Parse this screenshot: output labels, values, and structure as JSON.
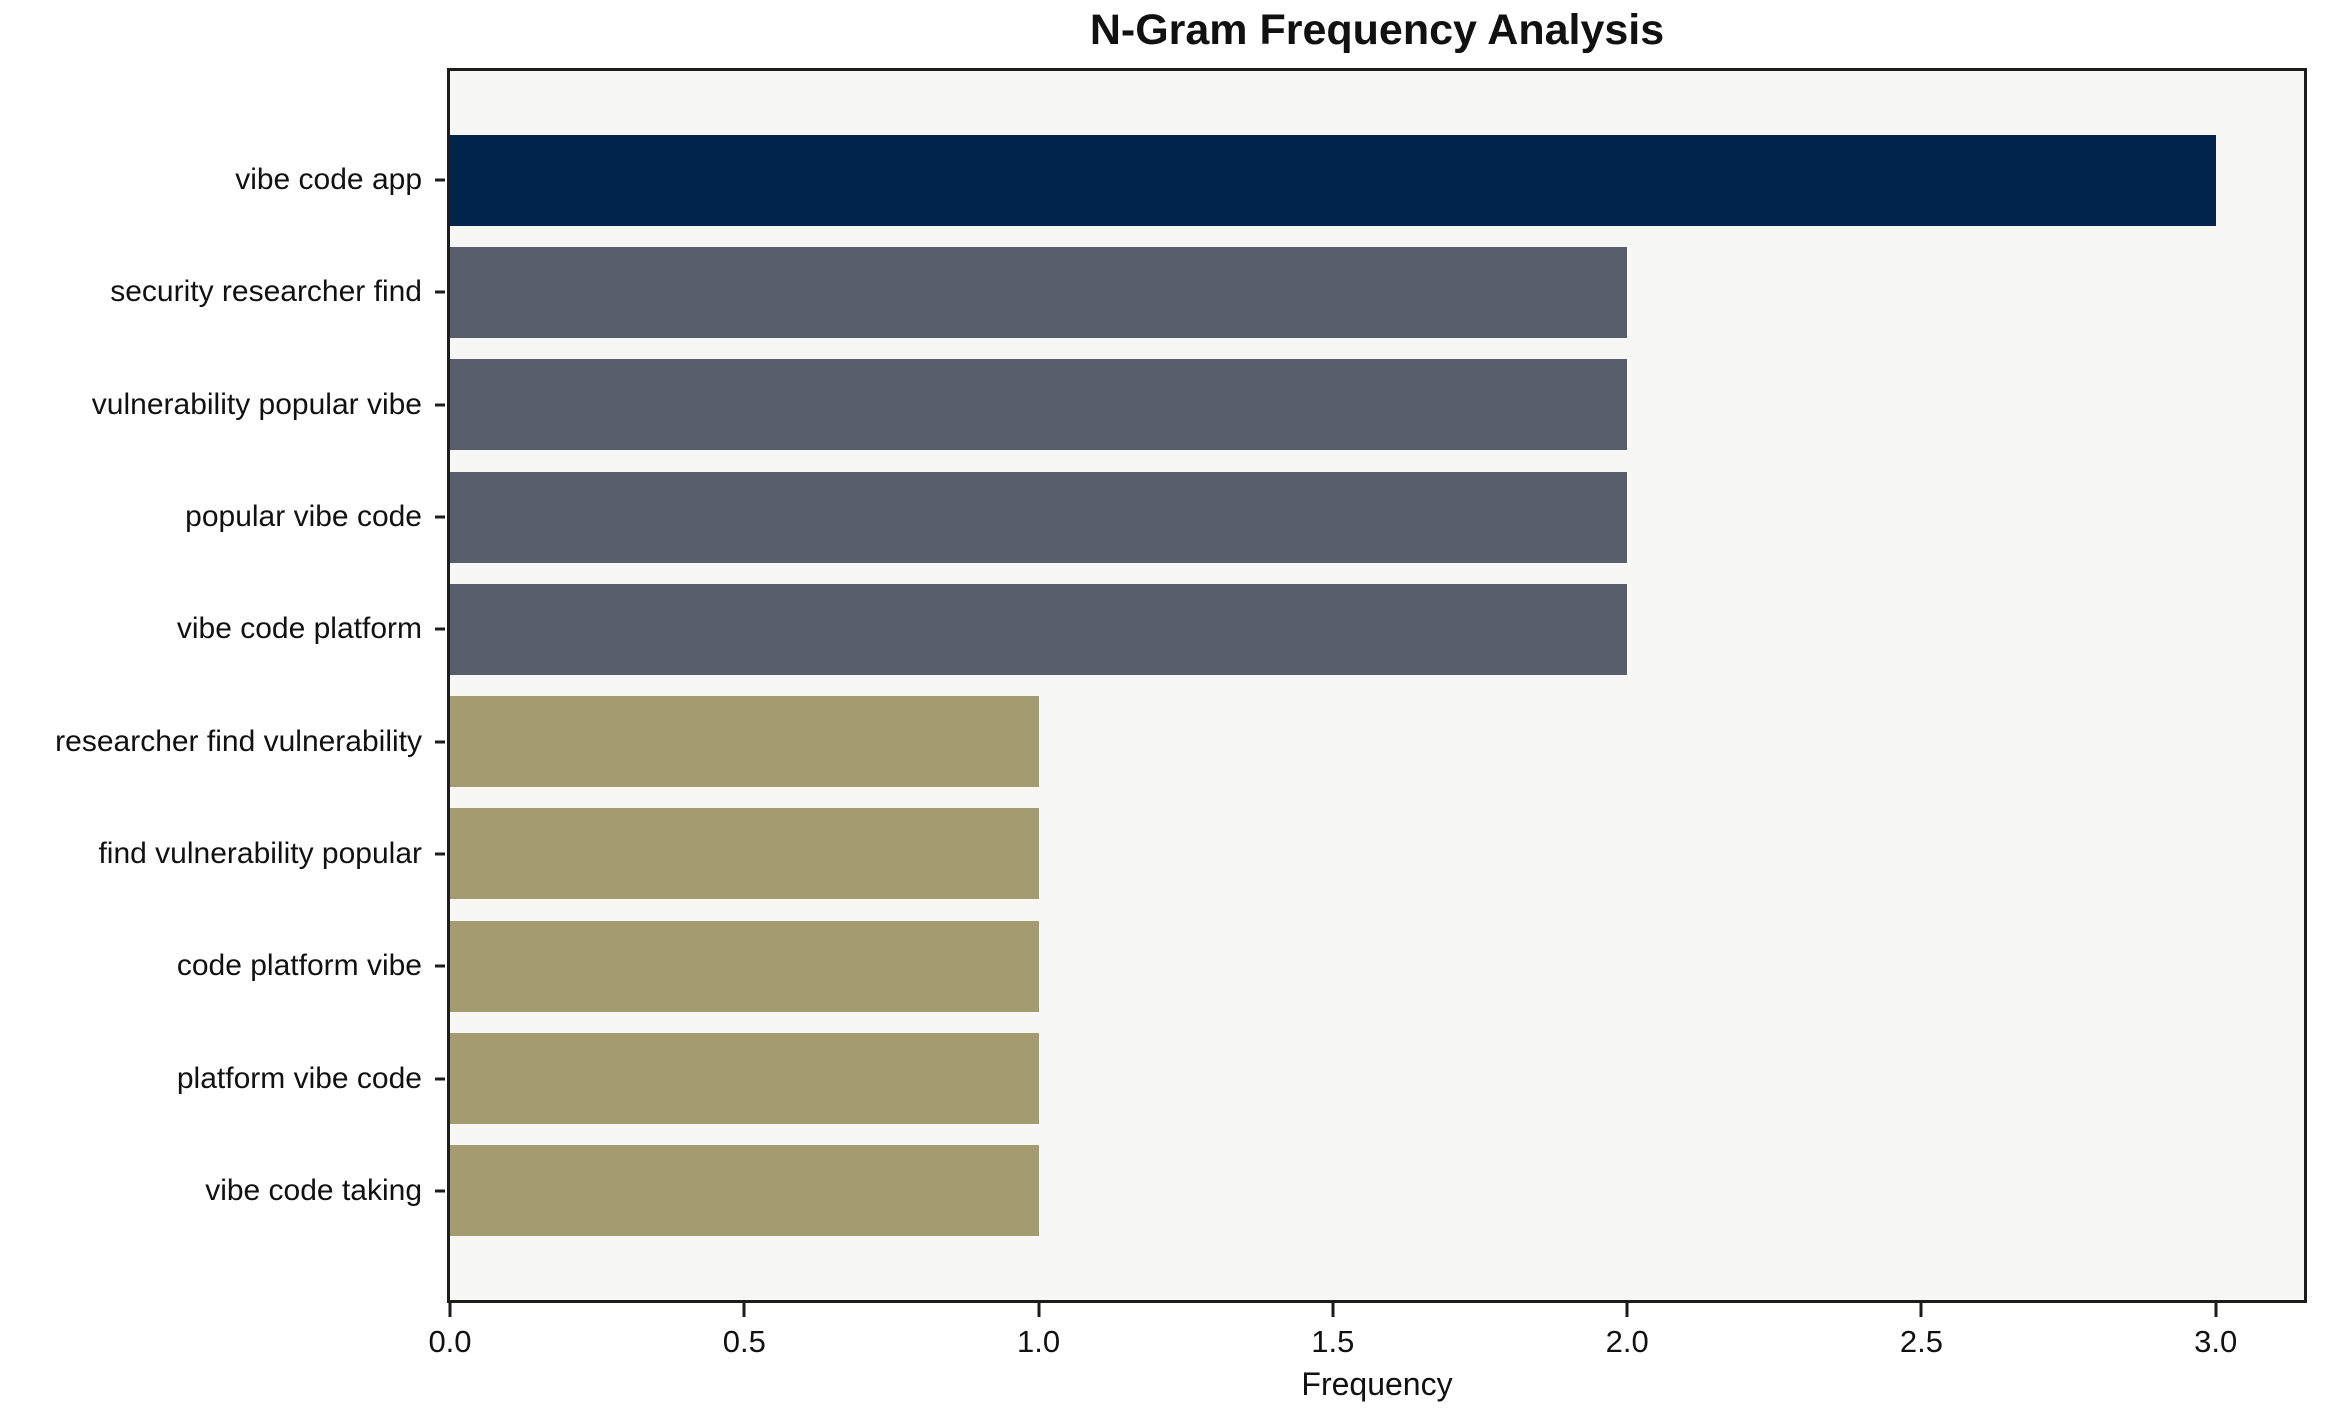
{
  "chart_data": {
    "type": "bar",
    "orientation": "horizontal",
    "title": "N-Gram Frequency Analysis",
    "xlabel": "Frequency",
    "ylabel": "",
    "categories": [
      "vibe code app",
      "security researcher find",
      "vulnerability popular vibe",
      "popular vibe code",
      "vibe code platform",
      "researcher find vulnerability",
      "find vulnerability popular",
      "code platform vibe",
      "platform vibe code",
      "vibe code taking"
    ],
    "values": [
      3,
      2,
      2,
      2,
      2,
      1,
      1,
      1,
      1,
      1
    ],
    "bar_colors": [
      "#02234B",
      "#585D6B",
      "#585D6B",
      "#585D6B",
      "#585D6B",
      "#A49B70",
      "#A49B70",
      "#A49B70",
      "#A49B70",
      "#A49B70"
    ],
    "xlim": [
      0,
      3.15
    ],
    "xticks": [
      0.0,
      0.5,
      1.0,
      1.5,
      2.0,
      2.5,
      3.0
    ],
    "xtick_labels": [
      "0.0",
      "0.5",
      "1.0",
      "1.5",
      "2.0",
      "2.5",
      "3.0"
    ],
    "grid": false,
    "legend": null,
    "colors": {
      "navy": "#02234B",
      "slate": "#585D6B",
      "khaki": "#A49B70",
      "plot_background": "#F7F7F6",
      "figure_background": "#FFFFFF",
      "spine": "#1c1c1c"
    }
  }
}
